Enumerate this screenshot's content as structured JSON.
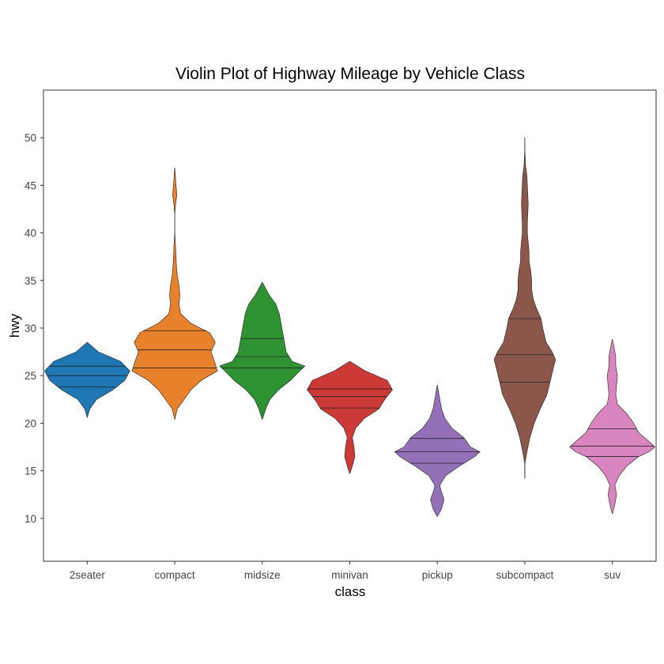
{
  "chart_data": {
    "type": "violin",
    "title": "Violin Plot of Highway Mileage by Vehicle Class",
    "xlabel": "class",
    "ylabel": "hwy",
    "ylim": [
      5.5,
      55
    ],
    "yticks": [
      10,
      15,
      20,
      25,
      30,
      35,
      40,
      45,
      50
    ],
    "grid": false,
    "legend": "none",
    "categories": [
      "2seater",
      "compact",
      "midsize",
      "minivan",
      "pickup",
      "subcompact",
      "suv"
    ],
    "series": [
      {
        "category": "2seater",
        "color": "#1f77b4",
        "quartiles": [
          23.8,
          25.0,
          26.0
        ],
        "density": [
          [
            20.6,
            0.002
          ],
          [
            21.5,
            0.06
          ],
          [
            22.5,
            0.22
          ],
          [
            23.5,
            0.6
          ],
          [
            24.5,
            0.88
          ],
          [
            25.5,
            1.0
          ],
          [
            26.5,
            0.78
          ],
          [
            27.5,
            0.26
          ],
          [
            28.5,
            0.002
          ]
        ]
      },
      {
        "category": "compact",
        "color": "#e8812c",
        "quartiles": [
          25.8,
          27.7,
          29.7
        ],
        "density": [
          [
            20.4,
            0.002
          ],
          [
            21.5,
            0.06
          ],
          [
            22.5,
            0.22
          ],
          [
            23.5,
            0.38
          ],
          [
            24.5,
            0.62
          ],
          [
            25.5,
            1.0
          ],
          [
            26.5,
            0.93
          ],
          [
            27.5,
            0.85
          ],
          [
            28.5,
            0.95
          ],
          [
            29.5,
            0.82
          ],
          [
            30.5,
            0.38
          ],
          [
            31.5,
            0.14
          ],
          [
            32.5,
            0.1
          ],
          [
            33.5,
            0.12
          ],
          [
            34.5,
            0.1
          ],
          [
            35.5,
            0.06
          ],
          [
            36.5,
            0.04
          ],
          [
            37.5,
            0.03
          ],
          [
            38.5,
            0.02
          ],
          [
            40.0,
            0.002
          ],
          [
            42.0,
            0.002
          ],
          [
            43.0,
            0.02
          ],
          [
            44.0,
            0.05
          ],
          [
            45.0,
            0.03
          ],
          [
            46.8,
            0.002
          ]
        ]
      },
      {
        "category": "midsize",
        "color": "#2e9132",
        "quartiles": [
          25.8,
          27.0,
          28.9
        ],
        "density": [
          [
            20.4,
            0.002
          ],
          [
            21.5,
            0.08
          ],
          [
            22.5,
            0.18
          ],
          [
            23.5,
            0.38
          ],
          [
            24.5,
            0.66
          ],
          [
            25.5,
            0.88
          ],
          [
            26.0,
            1.0
          ],
          [
            26.5,
            0.7
          ],
          [
            27.5,
            0.56
          ],
          [
            28.5,
            0.52
          ],
          [
            29.5,
            0.48
          ],
          [
            30.5,
            0.44
          ],
          [
            31.5,
            0.4
          ],
          [
            32.5,
            0.32
          ],
          [
            33.5,
            0.16
          ],
          [
            34.8,
            0.002
          ]
        ]
      },
      {
        "category": "minivan",
        "color": "#cc3a38",
        "quartiles": [
          21.6,
          22.8,
          23.6
        ],
        "density": [
          [
            14.7,
            0.002
          ],
          [
            15.5,
            0.06
          ],
          [
            16.5,
            0.12
          ],
          [
            17.5,
            0.1
          ],
          [
            18.5,
            0.06
          ],
          [
            19.5,
            0.14
          ],
          [
            20.5,
            0.34
          ],
          [
            21.5,
            0.68
          ],
          [
            22.5,
            0.82
          ],
          [
            23.5,
            1.0
          ],
          [
            24.5,
            0.88
          ],
          [
            25.5,
            0.36
          ],
          [
            26.5,
            0.002
          ]
        ]
      },
      {
        "category": "pickup",
        "color": "#9470b8",
        "quartiles": [
          15.8,
          17.0,
          18.4
        ],
        "density": [
          [
            10.2,
            0.002
          ],
          [
            11.0,
            0.1
          ],
          [
            12.0,
            0.16
          ],
          [
            13.0,
            0.08
          ],
          [
            13.5,
            0.06
          ],
          [
            14.5,
            0.2
          ],
          [
            15.5,
            0.52
          ],
          [
            16.5,
            0.88
          ],
          [
            17.0,
            1.0
          ],
          [
            17.5,
            0.78
          ],
          [
            18.5,
            0.62
          ],
          [
            19.5,
            0.34
          ],
          [
            20.5,
            0.18
          ],
          [
            21.5,
            0.1
          ],
          [
            22.5,
            0.06
          ],
          [
            24.0,
            0.002
          ]
        ]
      },
      {
        "category": "subcompact",
        "color": "#8c574b",
        "quartiles": [
          24.3,
          27.2,
          31.0
        ],
        "density": [
          [
            14.2,
            0.002
          ],
          [
            15.8,
            0.004
          ],
          [
            17.0,
            0.05
          ],
          [
            18.5,
            0.12
          ],
          [
            20.0,
            0.22
          ],
          [
            21.5,
            0.36
          ],
          [
            23.0,
            0.52
          ],
          [
            24.5,
            0.6
          ],
          [
            26.0,
            0.68
          ],
          [
            26.7,
            0.72
          ],
          [
            27.5,
            0.64
          ],
          [
            28.5,
            0.5
          ],
          [
            30.0,
            0.42
          ],
          [
            31.0,
            0.38
          ],
          [
            32.0,
            0.28
          ],
          [
            33.0,
            0.2
          ],
          [
            34.0,
            0.16
          ],
          [
            35.0,
            0.16
          ],
          [
            36.0,
            0.14
          ],
          [
            37.0,
            0.1
          ],
          [
            38.0,
            0.1
          ],
          [
            39.0,
            0.08
          ],
          [
            40.0,
            0.06
          ],
          [
            41.0,
            0.06
          ],
          [
            42.0,
            0.07
          ],
          [
            43.0,
            0.08
          ],
          [
            44.0,
            0.07
          ],
          [
            45.0,
            0.06
          ],
          [
            46.0,
            0.05
          ],
          [
            47.0,
            0.02
          ],
          [
            48.5,
            0.003
          ],
          [
            50.0,
            0.002
          ]
        ]
      },
      {
        "category": "suv",
        "color": "#d885c0",
        "quartiles": [
          16.5,
          17.6,
          19.4
        ],
        "density": [
          [
            10.5,
            0.002
          ],
          [
            11.5,
            0.06
          ],
          [
            12.5,
            0.1
          ],
          [
            13.5,
            0.06
          ],
          [
            14.5,
            0.16
          ],
          [
            15.5,
            0.34
          ],
          [
            16.5,
            0.62
          ],
          [
            17.0,
            0.86
          ],
          [
            17.5,
            1.0
          ],
          [
            18.0,
            0.88
          ],
          [
            19.0,
            0.62
          ],
          [
            20.0,
            0.5
          ],
          [
            21.0,
            0.34
          ],
          [
            22.0,
            0.12
          ],
          [
            23.0,
            0.08
          ],
          [
            24.0,
            0.1
          ],
          [
            25.0,
            0.12
          ],
          [
            26.0,
            0.08
          ],
          [
            27.0,
            0.08
          ],
          [
            28.0,
            0.04
          ],
          [
            28.8,
            0.002
          ]
        ]
      }
    ]
  }
}
